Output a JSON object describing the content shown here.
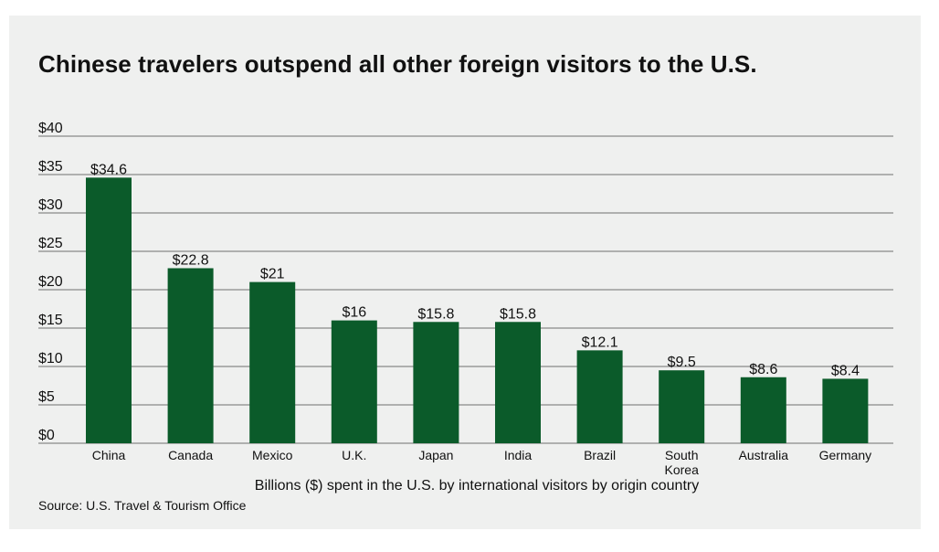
{
  "title": "Chinese travelers outspend all other foreign visitors to the U.S.",
  "source": "Source: U.S. Travel & Tourism Office",
  "colors": {
    "bar": "#0b5b2a",
    "grid": "#6f6f6f",
    "background": "#eff0ef"
  },
  "chart_data": {
    "type": "bar",
    "title": "Chinese travelers outspend all other foreign visitors to the U.S.",
    "xlabel": "Billions ($) spent in the U.S. by international visitors by origin country",
    "ylabel": "",
    "ylim": [
      0,
      40
    ],
    "yticks": [
      "$0",
      "$5",
      "$10",
      "$15",
      "$20",
      "$25",
      "$30",
      "$35",
      "$40"
    ],
    "grid": true,
    "categories": [
      "China",
      "Canada",
      "Mexico",
      "U.K.",
      "Japan",
      "India",
      "Brazil",
      "South\nKorea",
      "Australia",
      "Germany"
    ],
    "values": [
      34.6,
      22.8,
      21,
      16,
      15.8,
      15.8,
      12.1,
      9.5,
      8.6,
      8.4
    ],
    "data_labels": [
      "$34.6",
      "$22.8",
      "$21",
      "$16",
      "$15.8",
      "$15.8",
      "$12.1",
      "$9.5",
      "$8.6",
      "$8.4"
    ]
  }
}
